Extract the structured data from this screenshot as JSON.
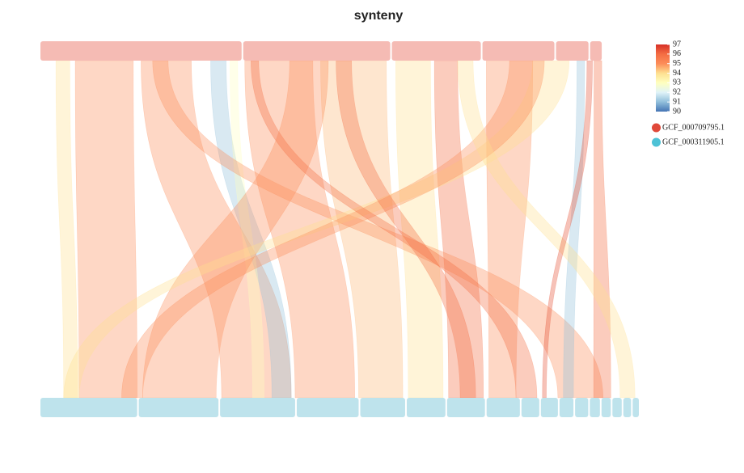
{
  "chart_data": {
    "type": "synteny",
    "title": "synteny",
    "genomes": [
      {
        "name": "GCF_000709795.1",
        "color": "#e0493a",
        "block_color": "#f5bbb4",
        "contigs": [
          2.6,
          1.9,
          1.15,
          0.93,
          0.42,
          0.15
        ]
      },
      {
        "name": "GCF_000311905.1",
        "color": "#4ec2d6",
        "block_color": "#bee3ec",
        "contigs": [
          1.25,
          1.03,
          0.97,
          0.8,
          0.58,
          0.5,
          0.49,
          0.43,
          0.23,
          0.22,
          0.18,
          0.17,
          0.13,
          0.12,
          0.12,
          0.1,
          0.08
        ]
      }
    ],
    "colorbar": {
      "ticks": [
        90,
        91,
        92,
        93,
        94,
        95,
        96,
        97
      ],
      "colors": [
        "#4575b4",
        "#91bfdb",
        "#e0f3f8",
        "#ffffbf",
        "#fee090",
        "#fc8d59",
        "#f46d43",
        "#d73027"
      ]
    },
    "links": [
      {
        "top": [
          0.45,
          1.2
        ],
        "bottom": [
          0.5,
          1.25
        ],
        "identity": 95
      },
      {
        "top": [
          0.2,
          0.38
        ],
        "bottom": [
          0.3,
          0.48
        ],
        "identity": 94
      },
      {
        "top": [
          1.3,
          1.95
        ],
        "bottom": [
          2.3,
          3.2
        ],
        "identity": 95
      },
      {
        "top": [
          2.2,
          2.4
        ],
        "bottom": [
          2.95,
          3.2
        ],
        "identity": 91
      },
      {
        "top": [
          2.45,
          2.55
        ],
        "bottom": [
          2.7,
          2.85
        ],
        "identity": 93
      },
      {
        "top": [
          2.62,
          3.5
        ],
        "bottom": [
          3.25,
          4.0
        ],
        "identity": 95
      },
      {
        "top": [
          3.6,
          4.45
        ],
        "bottom": [
          4.05,
          4.6
        ],
        "identity": 94.5
      },
      {
        "top": [
          3.2,
          3.7
        ],
        "bottom": [
          1.3,
          2.25
        ],
        "identity": 95
      },
      {
        "top": [
          4.55,
          5.0
        ],
        "bottom": [
          4.65,
          5.1
        ],
        "identity": 94
      },
      {
        "top": [
          5.05,
          5.35
        ],
        "bottom": [
          5.15,
          5.6
        ],
        "identity": 96
      },
      {
        "top": [
          5.7,
          6.3
        ],
        "bottom": [
          5.65,
          6.0
        ],
        "identity": 95
      },
      {
        "top": [
          1.45,
          1.65
        ],
        "bottom": [
          6.5,
          7.0
        ],
        "identity": 95
      },
      {
        "top": [
          6.3,
          6.75
        ],
        "bottom": [
          0.3,
          0.5
        ],
        "identity": 94
      },
      {
        "top": [
          6.0,
          6.45
        ],
        "bottom": [
          1.05,
          1.3
        ],
        "identity": 95
      },
      {
        "top": [
          6.85,
          6.95
        ],
        "bottom": [
          6.55,
          6.68
        ],
        "identity": 91
      },
      {
        "top": [
          7.05,
          7.15
        ],
        "bottom": [
          6.9,
          7.1
        ],
        "identity": 96
      },
      {
        "top": [
          2.7,
          2.8
        ],
        "bottom": [
          6.0,
          6.25
        ],
        "identity": 96
      },
      {
        "top": [
          5.35,
          5.55
        ],
        "bottom": [
          7.2,
          7.35
        ],
        "identity": 94
      },
      {
        "top": [
          6.98,
          7.03
        ],
        "bottom": [
          6.3,
          6.35
        ],
        "identity": 96.5
      },
      {
        "top": [
          3.8,
          4.0
        ],
        "bottom": [
          5.3,
          5.5
        ],
        "identity": 96
      }
    ]
  }
}
